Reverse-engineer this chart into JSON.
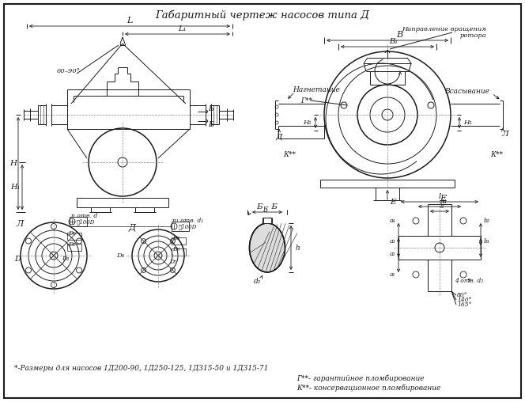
{
  "title": "Габаритный чертеж насосов типа Д",
  "bg_color": "#ffffff",
  "line_color": "#1a1a1a",
  "footnote1": "*-Размеры для насосов 1Д200-90, 1Д250-125, 1Д315-50 и 1Д315-71",
  "footnote2": "Г**- гарантийное пломбирование",
  "footnote3": "К**- консервационное пломбирование"
}
